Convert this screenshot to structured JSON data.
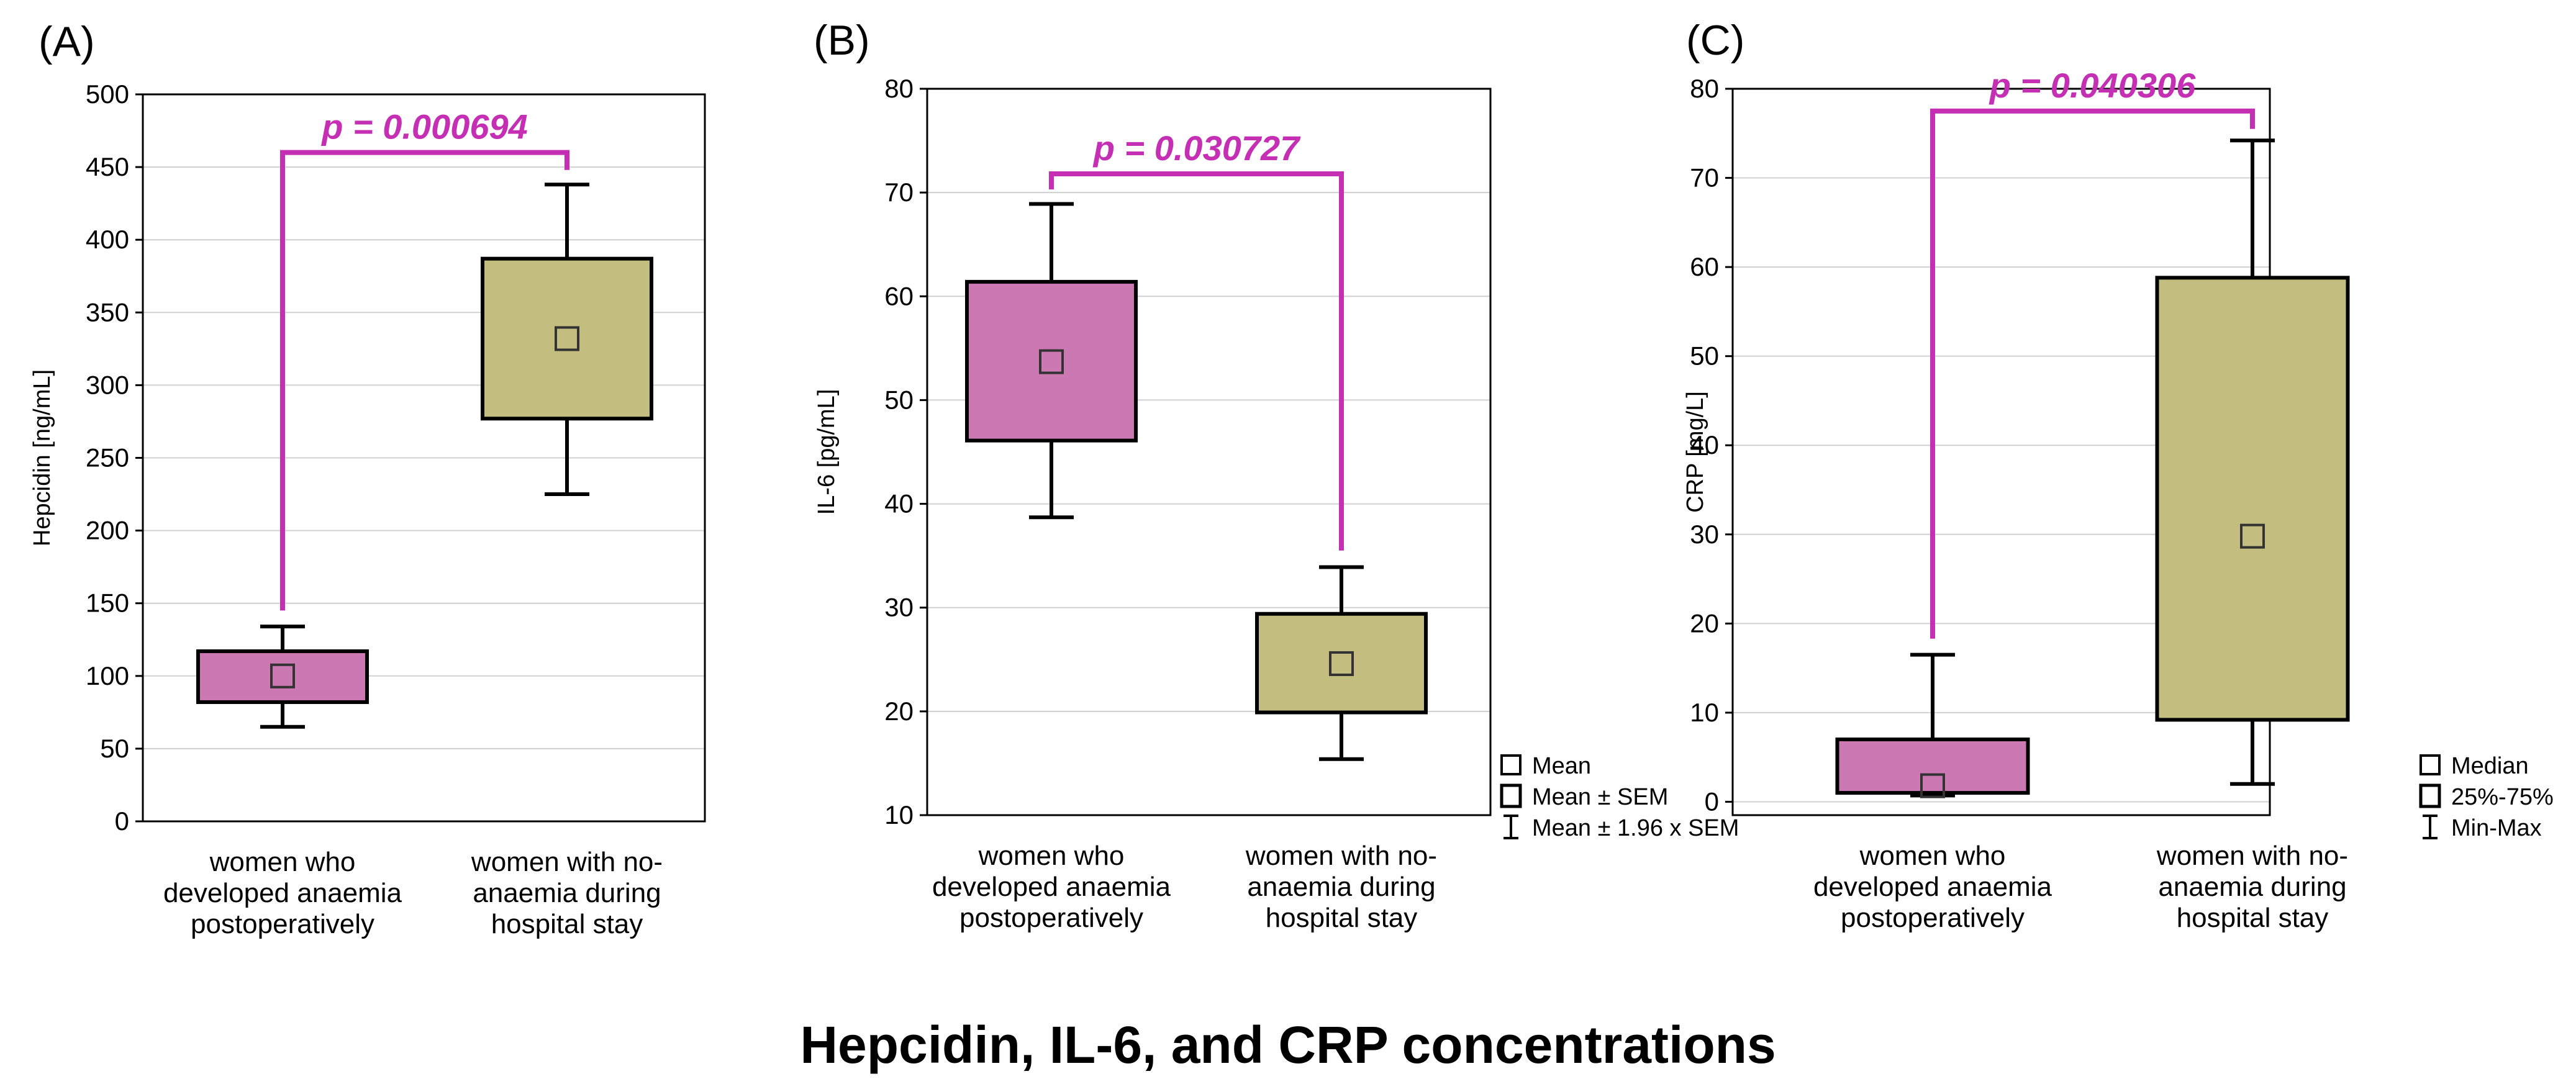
{
  "colors": {
    "group1": "#cc78b3",
    "group2": "#c3bd80",
    "pvalue": "#c52fb3"
  },
  "figure_title": "Hepcidin, IL-6, and CRP concentrations",
  "legends": [
    {
      "items": [
        {
          "symbol": "square-marker",
          "label": "Mean"
        },
        {
          "symbol": "box",
          "label": "Mean ± SEM"
        },
        {
          "symbol": "whisker",
          "label": "Mean ± 1.96 x SEM"
        }
      ]
    },
    {
      "items": [
        {
          "symbol": "square-marker",
          "label": "Median"
        },
        {
          "symbol": "box",
          "label": "25%-75%"
        },
        {
          "symbol": "whisker",
          "label": "Min-Max"
        }
      ]
    }
  ],
  "chart_data": [
    {
      "type": "box",
      "panel_label": "(A)",
      "ylabel": "Hepcidin [ng/mL]",
      "ylim": [
        0,
        500
      ],
      "yticks": [
        0,
        50,
        100,
        150,
        200,
        250,
        300,
        350,
        400,
        450,
        500
      ],
      "categories": [
        [
          "women who",
          "developed anaemia",
          "postoperatively"
        ],
        [
          "women with no-",
          "anaemia during",
          "hospital stay"
        ]
      ],
      "series": [
        {
          "name": "women who developed anaemia postoperatively",
          "center": 100,
          "box_low": 82,
          "box_high": 117,
          "whisker_low": 65,
          "whisker_high": 134
        },
        {
          "name": "women with no-anaemia during hospital stay",
          "center": 332,
          "box_low": 277,
          "box_high": 387,
          "whisker_low": 225,
          "whisker_high": 438
        }
      ],
      "pvalue": "p = 0.000694",
      "bracket": {
        "y_top": 460,
        "left_bottom": 145,
        "right_bottom": 448
      },
      "legend": null
    },
    {
      "type": "box",
      "panel_label": "(B)",
      "ylabel": "IL-6 [pg/mL]",
      "ylim": [
        10,
        80
      ],
      "yticks": [
        10,
        20,
        30,
        40,
        50,
        60,
        70,
        80
      ],
      "categories": [
        [
          "women who",
          "developed anaemia",
          "postoperatively"
        ],
        [
          "women with no-",
          "anaemia during",
          "hospital stay"
        ]
      ],
      "series": [
        {
          "name": "women who developed anaemia postoperatively",
          "center": 53.7,
          "box_low": 46.1,
          "box_high": 61.4,
          "whisker_low": 38.7,
          "whisker_high": 68.9
        },
        {
          "name": "women with no-anaemia during hospital stay",
          "center": 24.6,
          "box_low": 19.9,
          "box_high": 29.4,
          "whisker_low": 15.4,
          "whisker_high": 33.9
        }
      ],
      "pvalue": "p = 0.030727",
      "bracket": {
        "y_top": 71.8,
        "left_bottom": 70.3,
        "right_bottom": 35.5
      },
      "legend": 0
    },
    {
      "type": "box",
      "panel_label": "(C)",
      "ylabel": "CRP [mg/L]",
      "ylim": [
        -1.5,
        80
      ],
      "yticks": [
        0,
        10,
        20,
        30,
        40,
        50,
        60,
        70,
        80
      ],
      "categories": [
        [
          "women who",
          "developed anaemia",
          "postoperatively"
        ],
        [
          "women with no-",
          "anaemia during",
          "hospital stay"
        ]
      ],
      "series": [
        {
          "name": "women who developed anaemia postoperatively",
          "center": 1.8,
          "box_low": 1.0,
          "box_high": 7.0,
          "whisker_low": 0.7,
          "whisker_high": 16.5
        },
        {
          "name": "women with no-anaemia during hospital stay",
          "center": 29.8,
          "box_low": 9.2,
          "box_high": 58.8,
          "whisker_low": 2.0,
          "whisker_high": 74.2
        }
      ],
      "pvalue": "p = 0.040306",
      "bracket": {
        "y_top": 77.5,
        "left_bottom": 18.3,
        "right_bottom": 75.5
      },
      "legend": 1
    }
  ]
}
